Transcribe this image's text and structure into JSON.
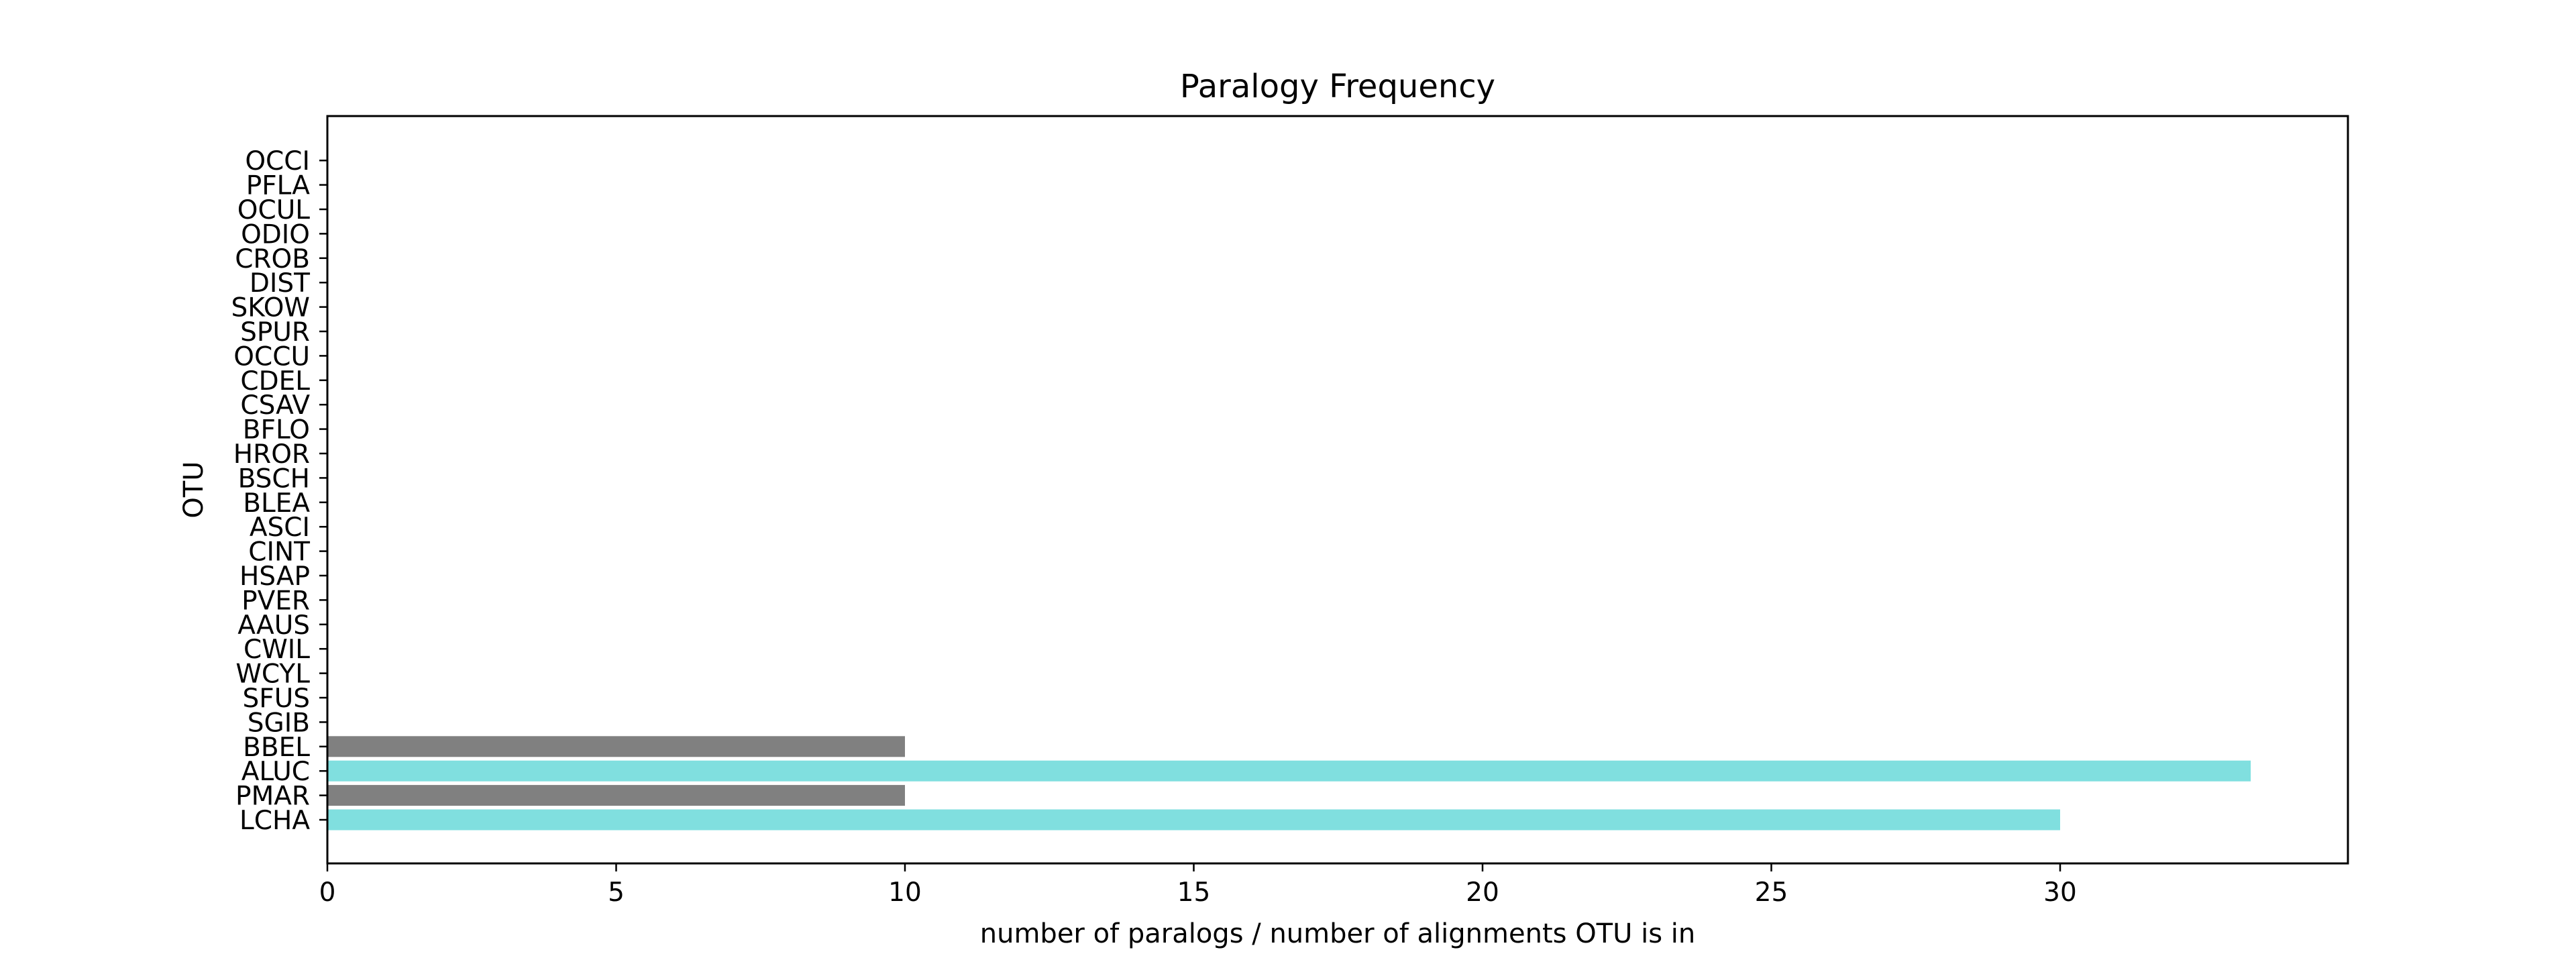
{
  "chart_data": {
    "type": "bar",
    "orientation": "horizontal",
    "title": "Paralogy Frequency",
    "xlabel": "number of paralogs / number of alignments OTU is in",
    "ylabel": "OTU",
    "xlim": [
      0,
      35
    ],
    "xticks": [
      "0",
      "5",
      "10",
      "15",
      "20",
      "25",
      "30"
    ],
    "categories": [
      "LCHA",
      "PMAR",
      "ALUC",
      "BBEL",
      "SGIB",
      "SFUS",
      "WCYL",
      "CWIL",
      "AAUS",
      "PVER",
      "HSAP",
      "CINT",
      "ASCI",
      "BLEA",
      "BSCH",
      "HROR",
      "BFLO",
      "CSAV",
      "CDEL",
      "OCCU",
      "SPUR",
      "SKOW",
      "DIST",
      "CROB",
      "ODIO",
      "OCUL",
      "PFLA",
      "OCCI"
    ],
    "values": [
      30,
      10,
      33.3,
      10,
      0,
      0,
      0,
      0,
      0,
      0,
      0,
      0,
      0,
      0,
      0,
      0,
      0,
      0,
      0,
      0,
      0,
      0,
      0,
      0,
      0,
      0,
      0,
      0
    ],
    "colors": [
      "#80dfdf",
      "#808080",
      "#80dfdf",
      "#808080",
      "#80dfdf",
      "#808080",
      "#80dfdf",
      "#808080",
      "#80dfdf",
      "#808080",
      "#80dfdf",
      "#808080",
      "#80dfdf",
      "#808080",
      "#80dfdf",
      "#808080",
      "#80dfdf",
      "#808080",
      "#80dfdf",
      "#808080",
      "#80dfdf",
      "#808080",
      "#80dfdf",
      "#808080",
      "#80dfdf",
      "#808080",
      "#80dfdf",
      "#808080"
    ],
    "grid": false,
    "legend": "none"
  }
}
